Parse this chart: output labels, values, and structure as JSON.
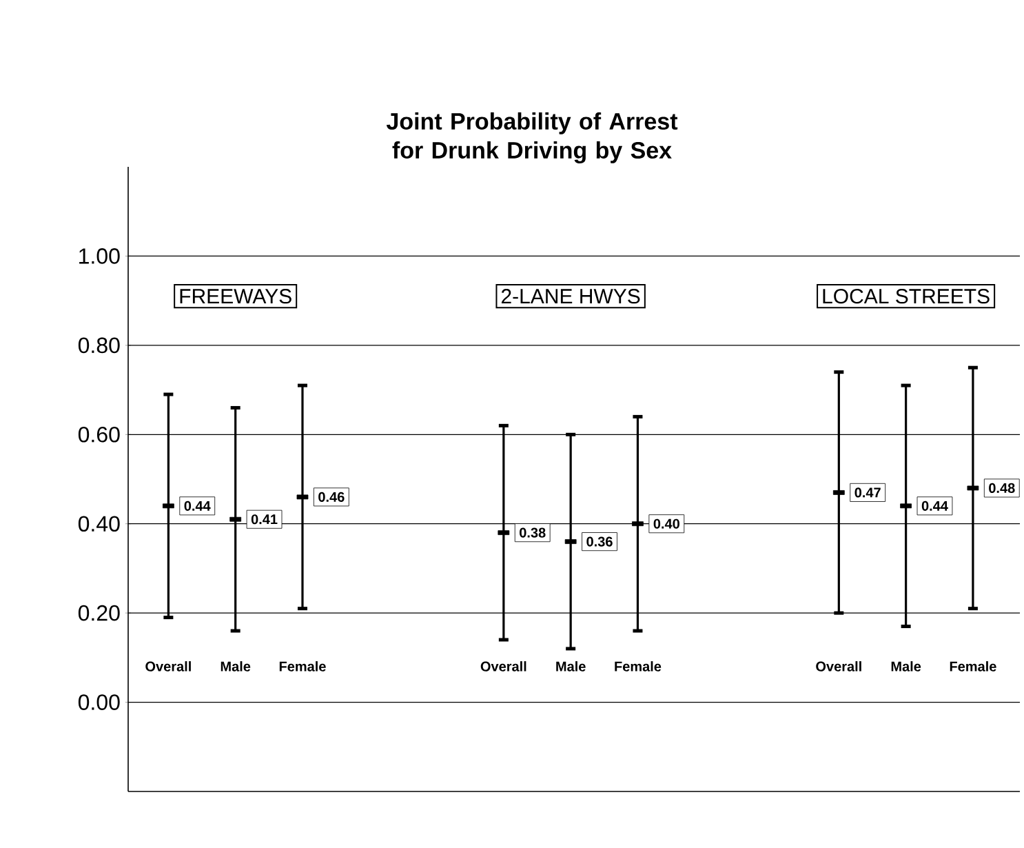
{
  "chart_data": {
    "type": "scatter",
    "title": "Joint Probability of Arrest for Drunk Driving by Sex",
    "categories": [
      "Overall",
      "Male",
      "Female",
      null,
      null,
      "Overall",
      "Male",
      "Female",
      null,
      null,
      "Overall",
      "Male",
      "Female"
    ],
    "series": [
      {
        "color": "#000000",
        "values": [
          0.44,
          0.41,
          0.46,
          null,
          null,
          0.38,
          0.36,
          0.4,
          null,
          null,
          0.47,
          0.44,
          0.48
        ],
        "errors": [
          [
            0.19,
            0.69
          ],
          [
            0.16,
            0.66
          ],
          [
            0.21,
            0.71
          ],
          null,
          null,
          [
            0.14,
            0.62
          ],
          [
            0.12,
            0.6
          ],
          [
            0.16,
            0.64
          ],
          null,
          null,
          [
            0.2,
            0.74
          ],
          [
            0.17,
            0.71
          ],
          [
            0.21,
            0.75
          ]
        ],
        "value_labels": [
          "0.44",
          "0.41",
          "0.46",
          null,
          null,
          "0.38",
          "0.36",
          "0.40",
          null,
          null,
          "0.47",
          "0.44",
          "0.48"
        ]
      }
    ],
    "annotations": [
      "FREEWAYS",
      "2-LANE HWYS",
      "LOCAL STREETS"
    ],
    "ylim": [
      -0.2,
      1.2
    ],
    "yticks": [
      {
        "value": 0,
        "label": "0.00"
      },
      {
        "value": 0.2,
        "label": "0.20"
      },
      {
        "value": 0.4,
        "label": "0.40"
      },
      {
        "value": 0.6,
        "label": "0.60"
      },
      {
        "value": 0.8,
        "label": "0.80"
      },
      {
        "value": 1,
        "label": "1.00"
      }
    ],
    "grid": "y",
    "marker": "square"
  }
}
